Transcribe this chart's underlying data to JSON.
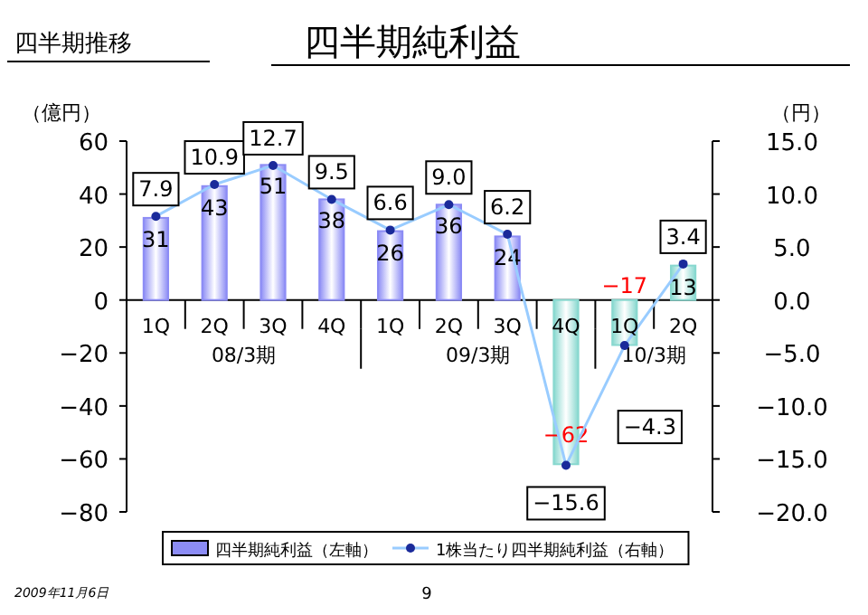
{
  "chart_data": {
    "type": "bar",
    "title": "四半期純利益",
    "subtitle": "四半期推移",
    "ylabel": "（億円）",
    "y2label": "（円）",
    "categories": [
      "1Q",
      "2Q",
      "3Q",
      "4Q",
      "1Q",
      "2Q",
      "3Q",
      "4Q",
      "1Q",
      "2Q"
    ],
    "series": [
      {
        "name": "四半期純利益（左軸）",
        "colors": [
          "#8c8cf5",
          "#8c8cf5",
          "#8c8cf5",
          "#8c8cf5",
          "#8c8cf5",
          "#8c8cf5",
          "#8c8cf5",
          "#88d8cf",
          "#88d8cf",
          "#88d8cf"
        ],
        "values": [
          31,
          43,
          51,
          38,
          26,
          36,
          24,
          -62,
          -17,
          13
        ]
      },
      {
        "name": "1株当たり四半期純利益（右軸）",
        "type": "line",
        "axis": "y2",
        "color": "#99ccff",
        "marker": "circle",
        "values": [
          7.9,
          10.9,
          12.7,
          9.5,
          6.6,
          9.0,
          6.2,
          -15.6,
          -4.3,
          3.4
        ],
        "value_labels": [
          "7.9",
          "10.9",
          "12.7",
          "9.5",
          "6.6",
          "9.0",
          "6.2",
          "−15.6",
          "−4.3",
          "3.4"
        ]
      }
    ],
    "ylim": [
      -80,
      60
    ],
    "yticks": [
      {
        "value": -80,
        "label": "−80"
      },
      {
        "value": -60,
        "label": "−60"
      },
      {
        "value": -40,
        "label": "−40"
      },
      {
        "value": -20,
        "label": "−20"
      },
      0,
      20,
      40,
      60
    ],
    "y2lim": [
      -20,
      15
    ],
    "y2ticks": [
      {
        "value": -20,
        "label": "−20.0"
      },
      {
        "value": -15,
        "label": "−15.0"
      },
      {
        "value": -10,
        "label": "−10.0"
      },
      {
        "value": -5,
        "label": "−5.0"
      },
      {
        "value": 0,
        "label": "0.0"
      },
      {
        "value": 5,
        "label": "5.0"
      },
      {
        "value": 10,
        "label": "10.0"
      },
      {
        "value": 15,
        "label": "15.0"
      }
    ],
    "data_labels": true,
    "legend": "bottom",
    "grid": false,
    "annotations": [
      "08/3期",
      "09/3期",
      "10/3期",
      "2009年11月6日",
      "9"
    ]
  }
}
